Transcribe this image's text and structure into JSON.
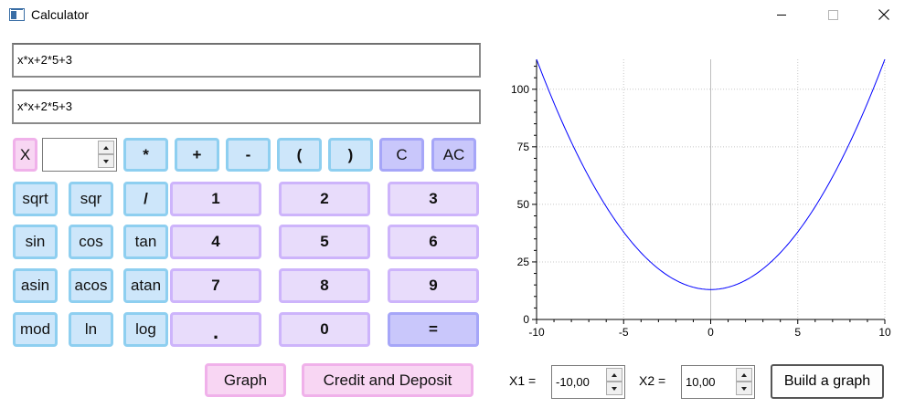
{
  "window": {
    "title": "Calculator"
  },
  "expression_field": "x*x+2*5+3",
  "display_field": "x*x+2*5+3",
  "x_value": "",
  "buttons": {
    "x": "X",
    "mul": "*",
    "plus": "+",
    "minus": "-",
    "lparen": "(",
    "rparen": ")",
    "clear": "C",
    "all_clear": "AC",
    "sqrt": "sqrt",
    "sqr": "sqr",
    "div": "/",
    "one": "1",
    "two": "2",
    "three": "3",
    "sin": "sin",
    "cos": "cos",
    "tan": "tan",
    "four": "4",
    "five": "5",
    "six": "6",
    "asin": "asin",
    "acos": "acos",
    "atan": "atan",
    "seven": "7",
    "eight": "8",
    "nine": "9",
    "mod": "mod",
    "ln": "ln",
    "log": "log",
    "dot": ".",
    "zero": "0",
    "equals": "=",
    "graph": "Graph",
    "credit_deposit": "Credit and Deposit",
    "build_graph": "Build a graph"
  },
  "range": {
    "x1_label": "X1 =",
    "x1_value": "-10,00",
    "x2_label": "X2 =",
    "x2_value": "10,00"
  },
  "colors": {
    "blue_button": "#cde6fa",
    "purple_button": "#e8dcfb",
    "pink_button": "#f8d6f3",
    "violet_button": "#c9c7fb",
    "curve": "#0000ff"
  },
  "chart_data": {
    "type": "line",
    "function": "x*x+2*5+3",
    "xlim": [
      -10,
      10
    ],
    "ylim": [
      0,
      113
    ],
    "x_ticks": [
      "-10",
      "-5",
      "0",
      "5",
      "10"
    ],
    "x_tick_values": [
      -10,
      -5,
      0,
      5,
      10
    ],
    "y_ticks": [
      "0",
      "25",
      "50",
      "75",
      "100"
    ],
    "y_tick_values": [
      0,
      25,
      50,
      75,
      100
    ],
    "grid": true,
    "series": [
      {
        "x": [
          -10,
          -8,
          -6,
          -4,
          -2,
          0,
          2,
          4,
          6,
          8,
          10
        ],
        "values": [
          113,
          77,
          49,
          29,
          17,
          13,
          17,
          29,
          49,
          77,
          113
        ]
      }
    ]
  }
}
